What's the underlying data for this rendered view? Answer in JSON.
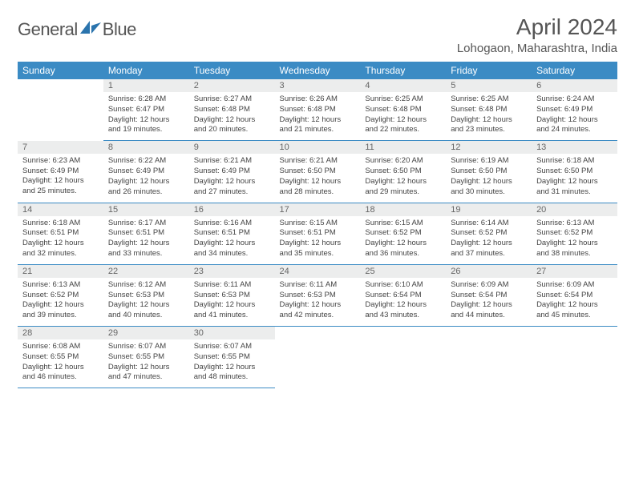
{
  "brand": {
    "name_part1": "General",
    "name_part2": "Blue",
    "accent_color": "#3b8bc4"
  },
  "title": "April 2024",
  "location": "Lohogaon, Maharashtra, India",
  "colors": {
    "header_bg": "#3b8bc4",
    "header_text": "#ffffff",
    "daynum_bg": "#eceded",
    "text": "#444444",
    "border": "#3b8bc4"
  },
  "fonts": {
    "title_size": 28,
    "location_size": 15,
    "header_size": 12,
    "daynum_size": 11,
    "body_size": 9.5
  },
  "weekdays": [
    "Sunday",
    "Monday",
    "Tuesday",
    "Wednesday",
    "Thursday",
    "Friday",
    "Saturday"
  ],
  "weeks": [
    [
      {
        "empty": true
      },
      {
        "day": "1",
        "sunrise": "Sunrise: 6:28 AM",
        "sunset": "Sunset: 6:47 PM",
        "daylight1": "Daylight: 12 hours",
        "daylight2": "and 19 minutes."
      },
      {
        "day": "2",
        "sunrise": "Sunrise: 6:27 AM",
        "sunset": "Sunset: 6:48 PM",
        "daylight1": "Daylight: 12 hours",
        "daylight2": "and 20 minutes."
      },
      {
        "day": "3",
        "sunrise": "Sunrise: 6:26 AM",
        "sunset": "Sunset: 6:48 PM",
        "daylight1": "Daylight: 12 hours",
        "daylight2": "and 21 minutes."
      },
      {
        "day": "4",
        "sunrise": "Sunrise: 6:25 AM",
        "sunset": "Sunset: 6:48 PM",
        "daylight1": "Daylight: 12 hours",
        "daylight2": "and 22 minutes."
      },
      {
        "day": "5",
        "sunrise": "Sunrise: 6:25 AM",
        "sunset": "Sunset: 6:48 PM",
        "daylight1": "Daylight: 12 hours",
        "daylight2": "and 23 minutes."
      },
      {
        "day": "6",
        "sunrise": "Sunrise: 6:24 AM",
        "sunset": "Sunset: 6:49 PM",
        "daylight1": "Daylight: 12 hours",
        "daylight2": "and 24 minutes."
      }
    ],
    [
      {
        "day": "7",
        "sunrise": "Sunrise: 6:23 AM",
        "sunset": "Sunset: 6:49 PM",
        "daylight1": "Daylight: 12 hours",
        "daylight2": "and 25 minutes."
      },
      {
        "day": "8",
        "sunrise": "Sunrise: 6:22 AM",
        "sunset": "Sunset: 6:49 PM",
        "daylight1": "Daylight: 12 hours",
        "daylight2": "and 26 minutes."
      },
      {
        "day": "9",
        "sunrise": "Sunrise: 6:21 AM",
        "sunset": "Sunset: 6:49 PM",
        "daylight1": "Daylight: 12 hours",
        "daylight2": "and 27 minutes."
      },
      {
        "day": "10",
        "sunrise": "Sunrise: 6:21 AM",
        "sunset": "Sunset: 6:50 PM",
        "daylight1": "Daylight: 12 hours",
        "daylight2": "and 28 minutes."
      },
      {
        "day": "11",
        "sunrise": "Sunrise: 6:20 AM",
        "sunset": "Sunset: 6:50 PM",
        "daylight1": "Daylight: 12 hours",
        "daylight2": "and 29 minutes."
      },
      {
        "day": "12",
        "sunrise": "Sunrise: 6:19 AM",
        "sunset": "Sunset: 6:50 PM",
        "daylight1": "Daylight: 12 hours",
        "daylight2": "and 30 minutes."
      },
      {
        "day": "13",
        "sunrise": "Sunrise: 6:18 AM",
        "sunset": "Sunset: 6:50 PM",
        "daylight1": "Daylight: 12 hours",
        "daylight2": "and 31 minutes."
      }
    ],
    [
      {
        "day": "14",
        "sunrise": "Sunrise: 6:18 AM",
        "sunset": "Sunset: 6:51 PM",
        "daylight1": "Daylight: 12 hours",
        "daylight2": "and 32 minutes."
      },
      {
        "day": "15",
        "sunrise": "Sunrise: 6:17 AM",
        "sunset": "Sunset: 6:51 PM",
        "daylight1": "Daylight: 12 hours",
        "daylight2": "and 33 minutes."
      },
      {
        "day": "16",
        "sunrise": "Sunrise: 6:16 AM",
        "sunset": "Sunset: 6:51 PM",
        "daylight1": "Daylight: 12 hours",
        "daylight2": "and 34 minutes."
      },
      {
        "day": "17",
        "sunrise": "Sunrise: 6:15 AM",
        "sunset": "Sunset: 6:51 PM",
        "daylight1": "Daylight: 12 hours",
        "daylight2": "and 35 minutes."
      },
      {
        "day": "18",
        "sunrise": "Sunrise: 6:15 AM",
        "sunset": "Sunset: 6:52 PM",
        "daylight1": "Daylight: 12 hours",
        "daylight2": "and 36 minutes."
      },
      {
        "day": "19",
        "sunrise": "Sunrise: 6:14 AM",
        "sunset": "Sunset: 6:52 PM",
        "daylight1": "Daylight: 12 hours",
        "daylight2": "and 37 minutes."
      },
      {
        "day": "20",
        "sunrise": "Sunrise: 6:13 AM",
        "sunset": "Sunset: 6:52 PM",
        "daylight1": "Daylight: 12 hours",
        "daylight2": "and 38 minutes."
      }
    ],
    [
      {
        "day": "21",
        "sunrise": "Sunrise: 6:13 AM",
        "sunset": "Sunset: 6:52 PM",
        "daylight1": "Daylight: 12 hours",
        "daylight2": "and 39 minutes."
      },
      {
        "day": "22",
        "sunrise": "Sunrise: 6:12 AM",
        "sunset": "Sunset: 6:53 PM",
        "daylight1": "Daylight: 12 hours",
        "daylight2": "and 40 minutes."
      },
      {
        "day": "23",
        "sunrise": "Sunrise: 6:11 AM",
        "sunset": "Sunset: 6:53 PM",
        "daylight1": "Daylight: 12 hours",
        "daylight2": "and 41 minutes."
      },
      {
        "day": "24",
        "sunrise": "Sunrise: 6:11 AM",
        "sunset": "Sunset: 6:53 PM",
        "daylight1": "Daylight: 12 hours",
        "daylight2": "and 42 minutes."
      },
      {
        "day": "25",
        "sunrise": "Sunrise: 6:10 AM",
        "sunset": "Sunset: 6:54 PM",
        "daylight1": "Daylight: 12 hours",
        "daylight2": "and 43 minutes."
      },
      {
        "day": "26",
        "sunrise": "Sunrise: 6:09 AM",
        "sunset": "Sunset: 6:54 PM",
        "daylight1": "Daylight: 12 hours",
        "daylight2": "and 44 minutes."
      },
      {
        "day": "27",
        "sunrise": "Sunrise: 6:09 AM",
        "sunset": "Sunset: 6:54 PM",
        "daylight1": "Daylight: 12 hours",
        "daylight2": "and 45 minutes."
      }
    ],
    [
      {
        "day": "28",
        "sunrise": "Sunrise: 6:08 AM",
        "sunset": "Sunset: 6:55 PM",
        "daylight1": "Daylight: 12 hours",
        "daylight2": "and 46 minutes."
      },
      {
        "day": "29",
        "sunrise": "Sunrise: 6:07 AM",
        "sunset": "Sunset: 6:55 PM",
        "daylight1": "Daylight: 12 hours",
        "daylight2": "and 47 minutes."
      },
      {
        "day": "30",
        "sunrise": "Sunrise: 6:07 AM",
        "sunset": "Sunset: 6:55 PM",
        "daylight1": "Daylight: 12 hours",
        "daylight2": "and 48 minutes."
      },
      {
        "empty": true
      },
      {
        "empty": true
      },
      {
        "empty": true
      },
      {
        "empty": true
      }
    ]
  ]
}
